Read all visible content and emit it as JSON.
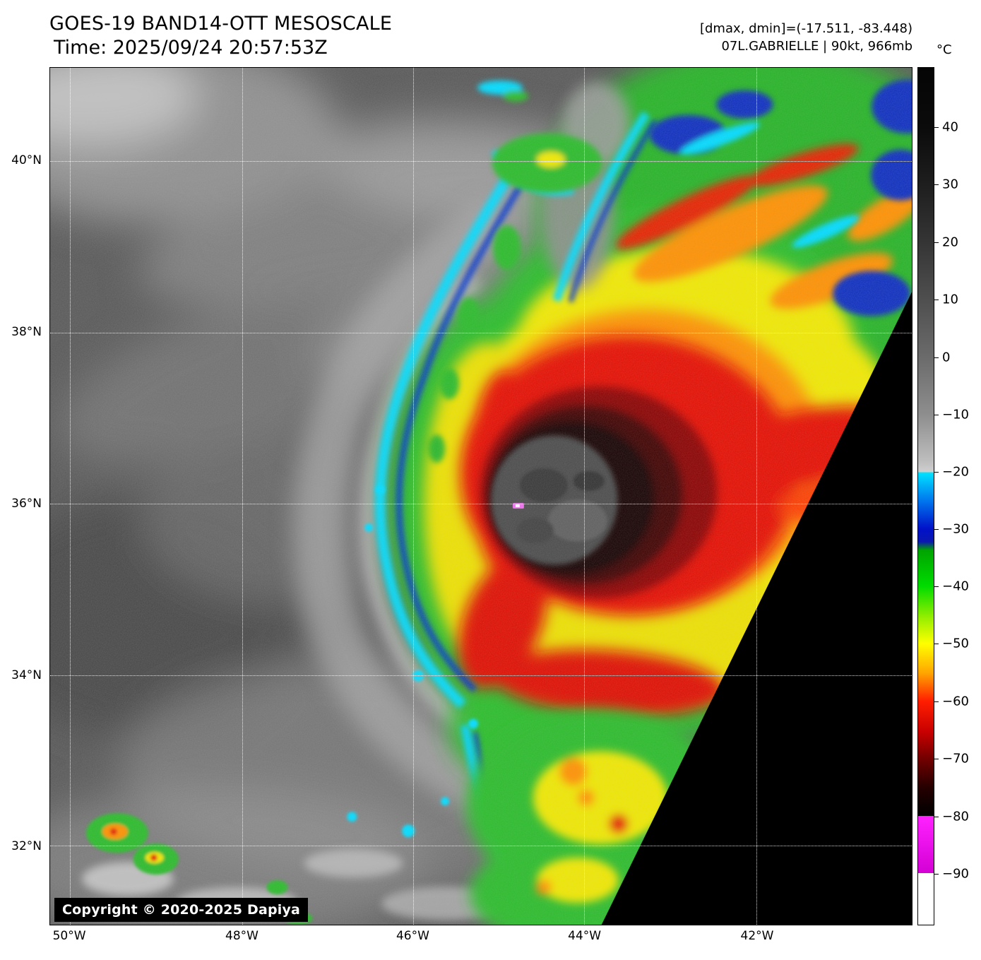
{
  "header": {
    "title": "GOES-19 BAND14-OTT MESOSCALE",
    "time_line": "Time: 2025/09/24 20:57:53Z",
    "dmax_dmin": "[dmax, dmin]=(-17.511, -83.448)",
    "storm_info": "07L.GABRIELLE | 90kt, 966mb"
  },
  "map": {
    "copyright": "Copyright © 2020-2025 Dapiya",
    "y_axis": {
      "labels": [
        "40°N",
        "38°N",
        "36°N",
        "34°N",
        "32°N"
      ],
      "positions_pct": [
        10.9,
        30.9,
        50.9,
        70.9,
        90.8
      ]
    },
    "x_axis": {
      "labels": [
        "50°W",
        "48°W",
        "46°W",
        "44°W",
        "42°W"
      ],
      "positions_pct": [
        2.3,
        22.3,
        42.1,
        62.0,
        82.0
      ]
    }
  },
  "colorbar": {
    "unit": "°C",
    "ticks": [
      "40",
      "30",
      "20",
      "10",
      "0",
      "−10",
      "−20",
      "−30",
      "−40",
      "−50",
      "−60",
      "−70",
      "−80",
      "−90"
    ],
    "tick_pcts": [
      7.0,
      13.7,
      20.4,
      27.1,
      33.8,
      40.5,
      47.2,
      53.8,
      60.5,
      67.2,
      73.9,
      80.6,
      87.3,
      94.0
    ],
    "gradient": [
      {
        "pct": 0,
        "color": "#050505"
      },
      {
        "pct": 7,
        "color": "#0b0b0b"
      },
      {
        "pct": 13.7,
        "color": "#1e1e1e"
      },
      {
        "pct": 20.4,
        "color": "#353535"
      },
      {
        "pct": 27.1,
        "color": "#4f4f4f"
      },
      {
        "pct": 33.8,
        "color": "#6b6b6b"
      },
      {
        "pct": 40.5,
        "color": "#8e8e8e"
      },
      {
        "pct": 45.8,
        "color": "#bdbdbd"
      },
      {
        "pct": 47.2,
        "color": "#cfcfcf"
      },
      {
        "pct": 47.2,
        "color": "#00e4ff"
      },
      {
        "pct": 50.5,
        "color": "#0077ee"
      },
      {
        "pct": 53.8,
        "color": "#0011c8"
      },
      {
        "pct": 55.3,
        "color": "#0a18b0"
      },
      {
        "pct": 56.3,
        "color": "#00a400"
      },
      {
        "pct": 60.5,
        "color": "#00dc00"
      },
      {
        "pct": 64.2,
        "color": "#97ef00"
      },
      {
        "pct": 67.2,
        "color": "#ffff00"
      },
      {
        "pct": 70.6,
        "color": "#ffa600"
      },
      {
        "pct": 73.9,
        "color": "#ff1e00"
      },
      {
        "pct": 77.5,
        "color": "#c80000"
      },
      {
        "pct": 80.6,
        "color": "#730000"
      },
      {
        "pct": 84,
        "color": "#250000"
      },
      {
        "pct": 87.3,
        "color": "#000000"
      },
      {
        "pct": 87.3,
        "color": "#ff22ff"
      },
      {
        "pct": 94,
        "color": "#d400d4"
      },
      {
        "pct": 94,
        "color": "#ffffff"
      },
      {
        "pct": 100,
        "color": "#ffffff"
      }
    ]
  }
}
